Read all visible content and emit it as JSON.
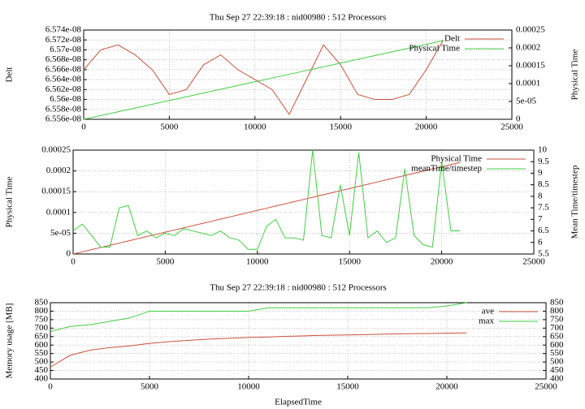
{
  "chart_data": [
    {
      "type": "line",
      "title": "Thu Sep 27 22:39:18 : nid00980 : 512 Processors",
      "ylabel": "Delt",
      "y2label": "Physical Time",
      "x": [
        0,
        1000,
        2000,
        3000,
        4000,
        5000,
        6000,
        7000,
        8000,
        9000,
        10000,
        11000,
        12000,
        13000,
        14000,
        15000,
        16000,
        17000,
        18000,
        19000,
        20000,
        21000
      ],
      "series": [
        {
          "name": "Delt",
          "color": "#c8503c",
          "values": [
            6.566e-08,
            6.57e-08,
            6.571e-08,
            6.569e-08,
            6.566e-08,
            6.561e-08,
            6.562e-08,
            6.567e-08,
            6.569e-08,
            6.566e-08,
            6.564e-08,
            6.562e-08,
            6.557e-08,
            6.564e-08,
            6.571e-08,
            6.567e-08,
            6.561e-08,
            6.56e-08,
            6.56e-08,
            6.561e-08,
            6.566e-08,
            6.572e-08
          ]
        },
        {
          "name": "Physical Time",
          "color": "#44cc44",
          "axis": "y2",
          "values": [
            0,
            1.05e-05,
            2.1e-05,
            3.15e-05,
            4.2e-05,
            5.25e-05,
            6.3e-05,
            7.35e-05,
            8.4e-05,
            9.45e-05,
            0.000105,
            0.0001155,
            0.000126,
            0.0001365,
            0.000147,
            0.0001575,
            0.000168,
            0.0001785,
            0.000189,
            0.0001995,
            0.00021,
            0.0002205
          ]
        }
      ],
      "xlim": [
        0,
        25000
      ],
      "xticks": [
        0,
        5000,
        10000,
        15000,
        20000,
        25000
      ],
      "ylim": [
        6.556e-08,
        6.574e-08
      ],
      "yticks": [
        {
          "value": 6.556e-08,
          "label": "6.556e-08"
        },
        {
          "value": 6.558e-08,
          "label": "6.558e-08"
        },
        {
          "value": 6.56e-08,
          "label": "6.56e-08"
        },
        {
          "value": 6.562e-08,
          "label": "6.562e-08"
        },
        {
          "value": 6.564e-08,
          "label": "6.564e-08"
        },
        {
          "value": 6.566e-08,
          "label": "6.566e-08"
        },
        {
          "value": 6.568e-08,
          "label": "6.568e-08"
        },
        {
          "value": 6.57e-08,
          "label": "6.57e-08"
        },
        {
          "value": 6.572e-08,
          "label": "6.572e-08"
        },
        {
          "value": 6.574e-08,
          "label": "6.574e-08"
        }
      ],
      "y2lim": [
        0,
        0.00025
      ],
      "y2ticks": [
        0,
        {
          "value": 5e-05,
          "label": "5e-05"
        },
        0.0001,
        0.00015,
        0.0002,
        0.00025
      ],
      "grid": true,
      "legend": "upper right"
    },
    {
      "type": "line",
      "ylabel": "Physical Time",
      "y2label": "Mean Time/timestep",
      "x": [
        0,
        500,
        1000,
        1500,
        2000,
        2500,
        3000,
        3500,
        4000,
        4500,
        5000,
        5500,
        6000,
        6500,
        7000,
        7500,
        8000,
        8500,
        9000,
        9500,
        10000,
        10500,
        11000,
        11500,
        12000,
        12500,
        13000,
        13500,
        14000,
        14500,
        15000,
        15500,
        16000,
        16500,
        17000,
        17500,
        18000,
        18500,
        19000,
        19500,
        20000,
        20500,
        21000
      ],
      "series": [
        {
          "name": "Physical Time",
          "color": "#c8503c",
          "values": [
            0,
            5.25e-06,
            1.05e-05,
            1.575e-05,
            2.1e-05,
            2.625e-05,
            3.15e-05,
            3.675e-05,
            4.2e-05,
            4.725e-05,
            5.25e-05,
            5.775e-05,
            6.3e-05,
            6.825e-05,
            7.35e-05,
            7.875e-05,
            8.4e-05,
            8.925e-05,
            9.45e-05,
            9.975e-05,
            0.000105,
            0.00011025,
            0.0001155,
            0.00012075,
            0.000126,
            0.00013125,
            0.0001365,
            0.00014175,
            0.000147,
            0.00015225,
            0.0001575,
            0.00016275,
            0.000168,
            0.00017325,
            0.0001785,
            0.00018375,
            0.000189,
            0.00019425,
            0.0001995,
            0.00020475,
            0.00021,
            0.00021525,
            0.0002205
          ]
        },
        {
          "name": "meanTime/timestep",
          "color": "#44cc44",
          "axis": "y2",
          "values": [
            6.5,
            6.8,
            6.3,
            5.8,
            5.8,
            7.5,
            7.6,
            6.3,
            6.5,
            6.2,
            6.4,
            6.3,
            6.6,
            6.5,
            6.4,
            6.3,
            6.5,
            6.2,
            6.1,
            5.7,
            5.7,
            6.7,
            7.0,
            6.2,
            6.2,
            6.1,
            10.0,
            6.3,
            6.2,
            8.5,
            6.3,
            9.9,
            6.2,
            6.5,
            6.0,
            6.2,
            9.2,
            6.3,
            5.9,
            5.8,
            9.5,
            6.5,
            6.5
          ]
        }
      ],
      "xlim": [
        0,
        25000
      ],
      "xticks": [
        0,
        5000,
        10000,
        15000,
        20000,
        25000
      ],
      "ylim": [
        0,
        0.00025
      ],
      "yticks": [
        0,
        {
          "value": 5e-05,
          "label": "5e-05"
        },
        0.0001,
        0.00015,
        0.0002,
        0.00025
      ],
      "y2lim": [
        5.5,
        10
      ],
      "y2ticks": [
        5.5,
        6,
        6.5,
        7,
        7.5,
        8,
        8.5,
        9,
        9.5,
        10
      ],
      "grid": true,
      "legend": "upper right"
    },
    {
      "type": "line",
      "title": "Thu Sep 27 22:39:18 : nid00980 : 512 Processors",
      "ylabel": "Memory usage [MB]",
      "xlabel": "ElapsedTime",
      "x": [
        0,
        1000,
        2000,
        3000,
        4000,
        5000,
        6000,
        7000,
        8000,
        9000,
        10000,
        11000,
        12000,
        13000,
        14000,
        15000,
        16000,
        17000,
        18000,
        19000,
        20000,
        21000
      ],
      "series": [
        {
          "name": "ave",
          "color": "#c8503c",
          "values": [
            470,
            540,
            570,
            585,
            595,
            610,
            620,
            628,
            635,
            640,
            645,
            648,
            652,
            655,
            658,
            660,
            662,
            665,
            667,
            668,
            670,
            672
          ]
        },
        {
          "name": "max",
          "color": "#44cc44",
          "values": [
            680,
            710,
            720,
            740,
            760,
            800,
            800,
            800,
            800,
            800,
            800,
            820,
            820,
            820,
            820,
            820,
            820,
            820,
            820,
            820,
            830,
            850
          ]
        }
      ],
      "xlim": [
        0,
        25000
      ],
      "xticks": [
        0,
        5000,
        10000,
        15000,
        20000,
        25000
      ],
      "ylim": [
        400,
        850
      ],
      "yticks": [
        400,
        450,
        500,
        550,
        600,
        650,
        700,
        750,
        800,
        850
      ],
      "y2lim": [
        400,
        850
      ],
      "y2ticks": [
        400,
        450,
        500,
        550,
        600,
        650,
        700,
        750,
        800,
        850
      ],
      "grid": true,
      "legend": "upper right"
    }
  ]
}
